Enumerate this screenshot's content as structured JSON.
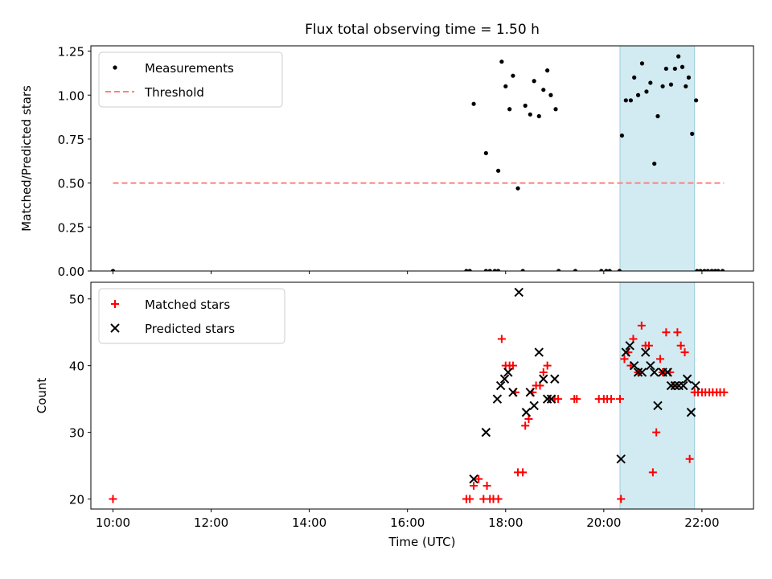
{
  "title": "Flux total observing time = 1.50 h",
  "colors": {
    "measurements": "#000000",
    "threshold": "#ff7f7f",
    "matched": "#ff0000",
    "predicted": "#000000",
    "shade": "#add8e6"
  },
  "chart_data": [
    {
      "type": "scatter",
      "panel": "top",
      "ylabel": "Matched/Predicted stars",
      "xlabel": "",
      "xlim": [
        9.55,
        23.05
      ],
      "ylim": [
        0,
        1.28
      ],
      "yticks": [
        {
          "v": 0.0,
          "label": "0.00"
        },
        {
          "v": 0.25,
          "label": "0.25"
        },
        {
          "v": 0.5,
          "label": "0.50"
        },
        {
          "v": 0.75,
          "label": "0.75"
        },
        {
          "v": 1.0,
          "label": "1.00"
        },
        {
          "v": 1.25,
          "label": "1.25"
        }
      ],
      "xticks": [
        10,
        12,
        14,
        16,
        18,
        20,
        22
      ],
      "shaded_region": [
        20.33,
        21.85
      ],
      "legend": {
        "placement": "upper-left",
        "entries": [
          "Measurements",
          "Threshold"
        ]
      },
      "series": [
        {
          "name": "Measurements",
          "points": [
            [
              10.0,
              0
            ],
            [
              17.2,
              0
            ],
            [
              17.27,
              0
            ],
            [
              17.6,
              0
            ],
            [
              17.68,
              0
            ],
            [
              17.78,
              0
            ],
            [
              17.85,
              0
            ],
            [
              18.35,
              0
            ],
            [
              19.08,
              0
            ],
            [
              19.42,
              0
            ],
            [
              19.95,
              0
            ],
            [
              20.05,
              0
            ],
            [
              20.12,
              0
            ],
            [
              20.32,
              0
            ],
            [
              21.9,
              0
            ],
            [
              21.97,
              0
            ],
            [
              22.05,
              0
            ],
            [
              22.12,
              0
            ],
            [
              22.2,
              0
            ],
            [
              22.27,
              0
            ],
            [
              22.33,
              0
            ],
            [
              22.42,
              0
            ],
            [
              17.35,
              0.95
            ],
            [
              17.6,
              0.67
            ],
            [
              17.85,
              0.57
            ],
            [
              17.92,
              1.19
            ],
            [
              18.0,
              1.05
            ],
            [
              18.08,
              0.92
            ],
            [
              18.15,
              1.11
            ],
            [
              18.25,
              0.47
            ],
            [
              18.4,
              0.94
            ],
            [
              18.5,
              0.89
            ],
            [
              18.58,
              1.08
            ],
            [
              18.68,
              0.88
            ],
            [
              18.77,
              1.03
            ],
            [
              18.85,
              1.14
            ],
            [
              18.92,
              1.0
            ],
            [
              19.02,
              0.92
            ],
            [
              20.37,
              0.77
            ],
            [
              20.45,
              0.97
            ],
            [
              20.55,
              0.97
            ],
            [
              20.62,
              1.1
            ],
            [
              20.7,
              1.0
            ],
            [
              20.78,
              1.18
            ],
            [
              20.87,
              1.02
            ],
            [
              20.95,
              1.07
            ],
            [
              21.03,
              0.61
            ],
            [
              21.1,
              0.88
            ],
            [
              21.2,
              1.05
            ],
            [
              21.27,
              1.15
            ],
            [
              21.37,
              1.06
            ],
            [
              21.45,
              1.15
            ],
            [
              21.52,
              1.22
            ],
            [
              21.6,
              1.16
            ],
            [
              21.67,
              1.05
            ],
            [
              21.73,
              1.1
            ],
            [
              21.8,
              0.78
            ],
            [
              21.88,
              0.97
            ]
          ]
        },
        {
          "name": "Threshold",
          "line": [
            [
              10.0,
              0.5
            ],
            [
              22.45,
              0.5
            ]
          ]
        }
      ]
    },
    {
      "type": "scatter",
      "panel": "bottom",
      "ylabel": "Count",
      "xlabel": "Time (UTC)",
      "xlim": [
        9.55,
        23.05
      ],
      "ylim": [
        18.5,
        52.5
      ],
      "yticks": [
        {
          "v": 20,
          "label": "20"
        },
        {
          "v": 30,
          "label": "30"
        },
        {
          "v": 40,
          "label": "40"
        },
        {
          "v": 50,
          "label": "50"
        }
      ],
      "xticks": [
        {
          "v": 10,
          "label": "10:00"
        },
        {
          "v": 12,
          "label": "12:00"
        },
        {
          "v": 14,
          "label": "14:00"
        },
        {
          "v": 16,
          "label": "16:00"
        },
        {
          "v": 18,
          "label": "18:00"
        },
        {
          "v": 20,
          "label": "20:00"
        },
        {
          "v": 22,
          "label": "22:00"
        }
      ],
      "shaded_region": [
        20.33,
        21.85
      ],
      "legend": {
        "placement": "upper-left",
        "entries": [
          "Matched stars",
          "Predicted stars"
        ]
      },
      "series": [
        {
          "name": "Matched stars",
          "points": [
            [
              10.0,
              20
            ],
            [
              17.2,
              20
            ],
            [
              17.27,
              20
            ],
            [
              17.35,
              22
            ],
            [
              17.45,
              23
            ],
            [
              17.55,
              20
            ],
            [
              17.62,
              22
            ],
            [
              17.68,
              20
            ],
            [
              17.75,
              20
            ],
            [
              17.85,
              20
            ],
            [
              17.92,
              44
            ],
            [
              18.0,
              40
            ],
            [
              18.08,
              40
            ],
            [
              18.15,
              40
            ],
            [
              18.2,
              36
            ],
            [
              18.25,
              24
            ],
            [
              18.35,
              24
            ],
            [
              18.4,
              31
            ],
            [
              18.47,
              32
            ],
            [
              18.55,
              36
            ],
            [
              18.62,
              37
            ],
            [
              18.7,
              37
            ],
            [
              18.77,
              39
            ],
            [
              18.85,
              40
            ],
            [
              18.9,
              35
            ],
            [
              19.0,
              35
            ],
            [
              19.07,
              35
            ],
            [
              19.4,
              35
            ],
            [
              19.45,
              35
            ],
            [
              19.9,
              35
            ],
            [
              20.0,
              35
            ],
            [
              20.07,
              35
            ],
            [
              20.15,
              35
            ],
            [
              20.33,
              35
            ],
            [
              20.35,
              20
            ],
            [
              20.42,
              41
            ],
            [
              20.5,
              42
            ],
            [
              20.55,
              40
            ],
            [
              20.6,
              44
            ],
            [
              20.7,
              39
            ],
            [
              20.77,
              46
            ],
            [
              20.85,
              43
            ],
            [
              20.92,
              43
            ],
            [
              21.0,
              24
            ],
            [
              21.07,
              30
            ],
            [
              21.15,
              41
            ],
            [
              21.2,
              39
            ],
            [
              21.27,
              45
            ],
            [
              21.35,
              39
            ],
            [
              21.42,
              37
            ],
            [
              21.5,
              45
            ],
            [
              21.57,
              43
            ],
            [
              21.65,
              42
            ],
            [
              21.75,
              26
            ],
            [
              21.85,
              36
            ],
            [
              21.92,
              36
            ],
            [
              22.0,
              36
            ],
            [
              22.07,
              36
            ],
            [
              22.15,
              36
            ],
            [
              22.22,
              36
            ],
            [
              22.3,
              36
            ],
            [
              22.37,
              36
            ],
            [
              22.45,
              36
            ]
          ]
        },
        {
          "name": "Predicted stars",
          "points": [
            [
              17.35,
              23
            ],
            [
              17.6,
              30
            ],
            [
              17.83,
              35
            ],
            [
              17.9,
              37
            ],
            [
              17.98,
              38
            ],
            [
              18.05,
              39
            ],
            [
              18.15,
              36
            ],
            [
              18.27,
              51
            ],
            [
              18.42,
              33
            ],
            [
              18.5,
              36
            ],
            [
              18.58,
              34
            ],
            [
              18.68,
              42
            ],
            [
              18.77,
              38
            ],
            [
              18.85,
              35
            ],
            [
              18.93,
              35
            ],
            [
              19.0,
              38
            ],
            [
              20.35,
              26
            ],
            [
              20.45,
              42
            ],
            [
              20.53,
              43
            ],
            [
              20.62,
              40
            ],
            [
              20.7,
              39
            ],
            [
              20.78,
              39
            ],
            [
              20.85,
              42
            ],
            [
              20.95,
              40
            ],
            [
              21.03,
              39
            ],
            [
              21.1,
              34
            ],
            [
              21.2,
              39
            ],
            [
              21.3,
              39
            ],
            [
              21.37,
              37
            ],
            [
              21.45,
              37
            ],
            [
              21.53,
              37
            ],
            [
              21.62,
              37
            ],
            [
              21.7,
              38
            ],
            [
              21.78,
              33
            ],
            [
              21.87,
              37
            ]
          ]
        }
      ]
    }
  ]
}
